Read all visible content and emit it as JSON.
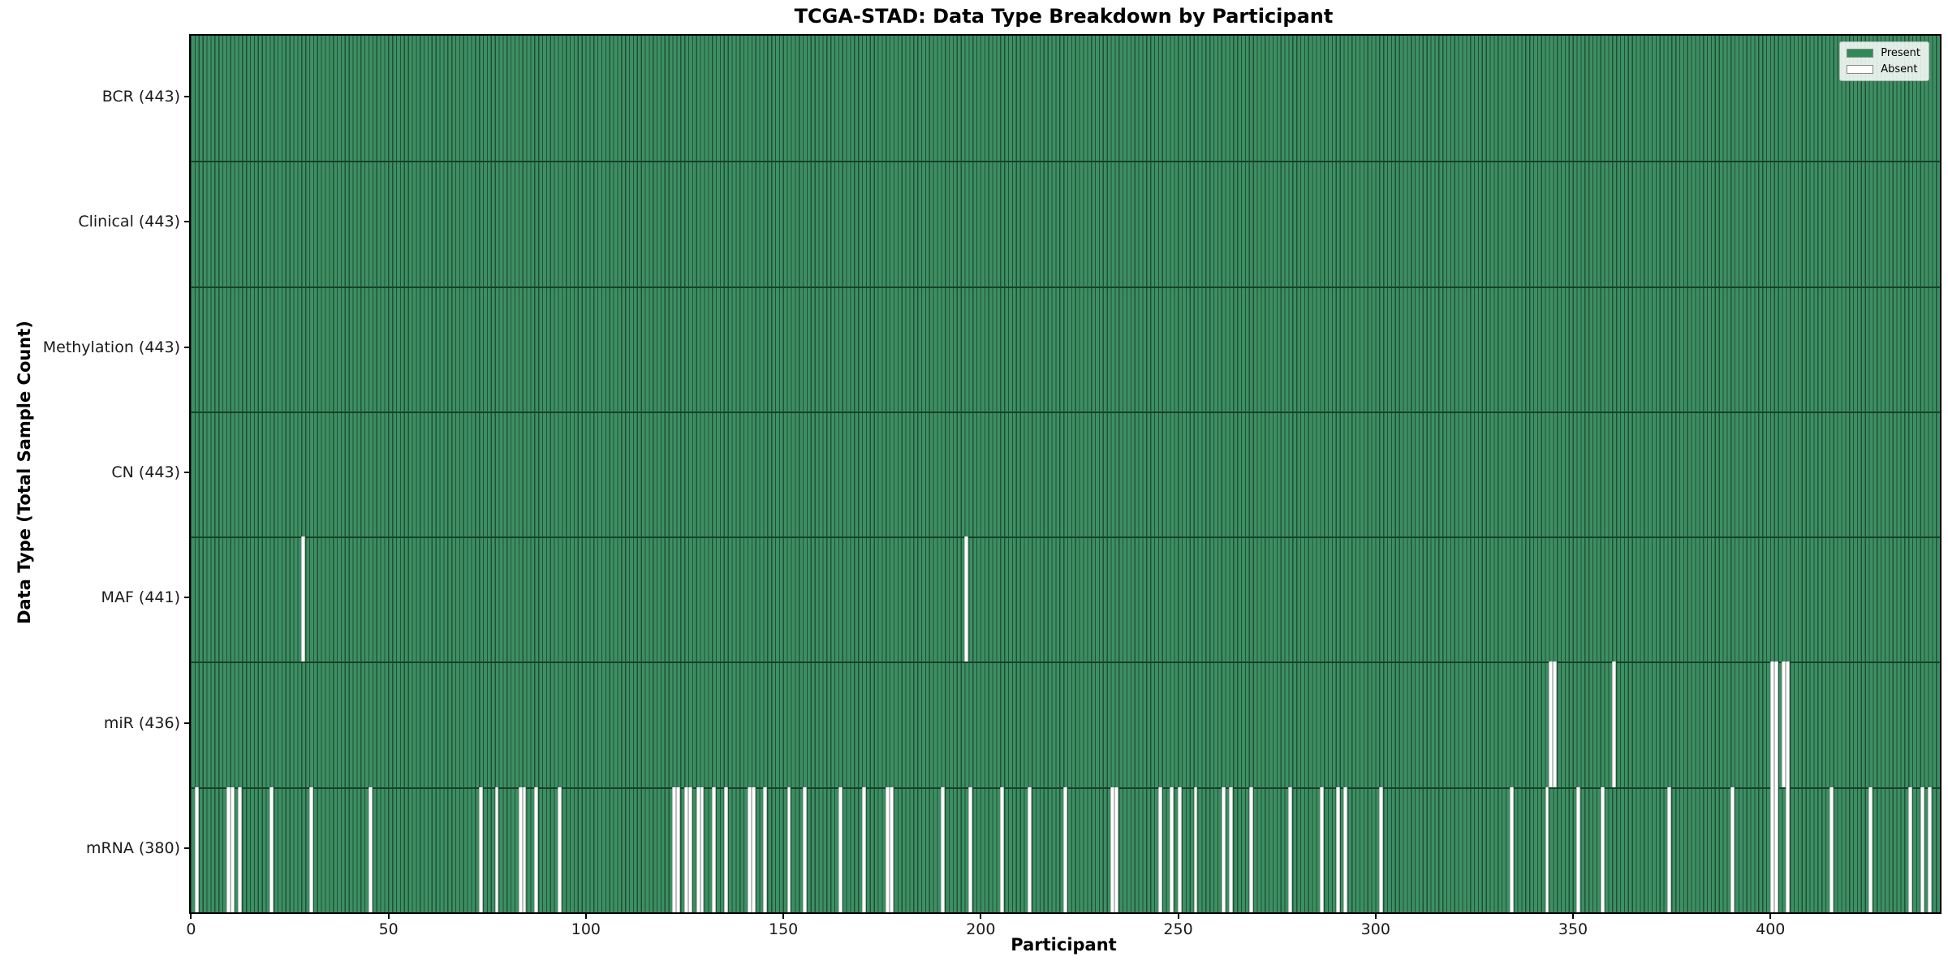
{
  "title": "TCGA-STAD: Data Type Breakdown by Participant",
  "xlabel": "Participant",
  "ylabel": "Data Type (Total Sample Count)",
  "legend": {
    "present_label": "Present",
    "absent_label": "Absent"
  },
  "colors": {
    "present_fill": "#3D8F63",
    "present_edge": "#1F5136",
    "absent_fill": "#FFFFFF",
    "absent_edge": "#BDBDBD",
    "row_divider": "#16412A",
    "legend_present_swatch": "#2E8B57",
    "legend_absent_swatch": "#FFFFFF",
    "axis_color": "#000000"
  },
  "chart_data": {
    "type": "heatmap",
    "subtype": "presence-absence-matrix",
    "title": "TCGA-STAD: Data Type Breakdown by Participant",
    "xlabel": "Participant",
    "ylabel": "Data Type (Total Sample Count)",
    "n_participants": 443,
    "x_ticks": [
      0,
      50,
      100,
      150,
      200,
      250,
      300,
      350,
      400
    ],
    "legend_entries": [
      "Present",
      "Absent"
    ],
    "legend_position": "upper right",
    "grid": false,
    "rows": [
      {
        "name": "BCR",
        "label": "BCR (443)",
        "total": 443,
        "absent": []
      },
      {
        "name": "Clinical",
        "label": "Clinical (443)",
        "total": 443,
        "absent": []
      },
      {
        "name": "Methylation",
        "label": "Methylation (443)",
        "total": 443,
        "absent": []
      },
      {
        "name": "CN",
        "label": "CN (443)",
        "total": 443,
        "absent": []
      },
      {
        "name": "MAF",
        "label": "MAF (441)",
        "total": 441,
        "absent": [
          28,
          196
        ]
      },
      {
        "name": "miR",
        "label": "miR (436)",
        "total": 436,
        "absent": [
          344,
          345,
          360,
          400,
          401,
          403,
          404
        ]
      },
      {
        "name": "mRNA",
        "label": "mRNA (380)",
        "total": 380,
        "absent": [
          1,
          9,
          10,
          12,
          20,
          30,
          45,
          73,
          77,
          83,
          84,
          87,
          93,
          122,
          123,
          125,
          126,
          128,
          129,
          132,
          135,
          141,
          142,
          145,
          151,
          155,
          164,
          170,
          176,
          177,
          190,
          197,
          205,
          212,
          221,
          233,
          234,
          245,
          248,
          250,
          254,
          261,
          263,
          268,
          278,
          286,
          290,
          292,
          301,
          334,
          343,
          351,
          357,
          374,
          390,
          400,
          401,
          404,
          415,
          425,
          435,
          438,
          440
        ]
      }
    ]
  }
}
